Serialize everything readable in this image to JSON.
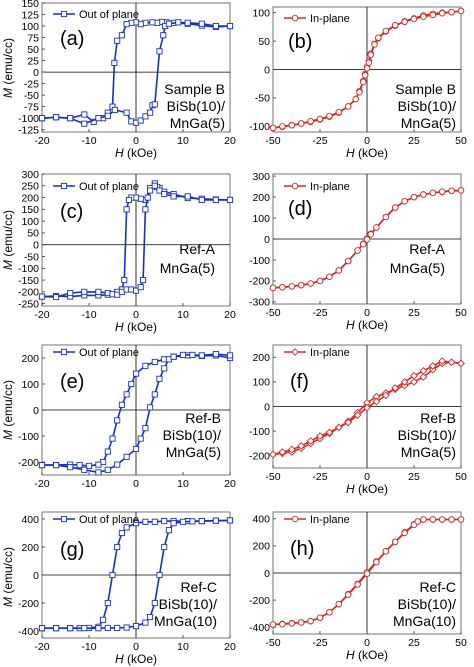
{
  "figure": {
    "ylabel_parts": [
      "M",
      " (emu/cc)"
    ],
    "xlabel_parts": [
      "H",
      " (kOe)"
    ]
  },
  "colors": {
    "out_of_plane": "#1a2fc4",
    "in_plane": "#d42a2a",
    "axis": "#000000",
    "frame": "#666666"
  },
  "chart_data": [
    {
      "type": "line",
      "panel": "(a)",
      "legend": "Out of plane",
      "marker": "square",
      "annotation": [
        "Sample B",
        "BiSb(10)/",
        "MnGa(5)"
      ],
      "xlim": [
        -20,
        20
      ],
      "ylim": [
        -130,
        150
      ],
      "xticks": [
        -20,
        -10,
        0,
        10,
        20
      ],
      "yticks": [
        -125,
        -100,
        -75,
        -50,
        -25,
        0,
        25,
        50,
        75,
        100,
        125,
        150
      ],
      "show_xlabel": true,
      "series": [
        {
          "name": "Out of plane",
          "segment": "descending",
          "x": [
            20,
            17,
            14,
            11,
            8,
            6.5,
            5.5,
            4.5,
            3.5,
            2,
            1,
            0,
            -1,
            -2,
            -3,
            -4,
            -4.6,
            -5,
            -6,
            -7,
            -9,
            -11,
            -14,
            -17,
            -20
          ],
          "y": [
            100,
            98,
            101,
            105,
            107,
            108,
            109,
            107,
            108,
            107,
            104,
            108,
            107,
            104,
            80,
            68,
            20,
            -75,
            -88,
            -100,
            -108,
            -92,
            -100,
            -98,
            -100
          ]
        },
        {
          "name": "Out of plane",
          "segment": "ascending",
          "x": [
            -20,
            -17,
            -14,
            -11,
            -8,
            -6,
            -4.5,
            -2,
            -1,
            0,
            1,
            2,
            3,
            3.5,
            4,
            5,
            5.8,
            6.2,
            7,
            9,
            11,
            14,
            17,
            20
          ],
          "y": [
            -100,
            -98,
            -100,
            -112,
            -100,
            -95,
            -82,
            -88,
            -107,
            -110,
            -105,
            -96,
            -88,
            -72,
            -70,
            45,
            80,
            100,
            105,
            108,
            107,
            105,
            100,
            100
          ]
        }
      ]
    },
    {
      "type": "line",
      "panel": "(b)",
      "legend": "In-plane",
      "marker": "circle",
      "annotation": [
        "Sample B",
        "BiSb(10)/",
        "MnGa(5)"
      ],
      "xlim": [
        -50,
        50
      ],
      "ylim": [
        -110,
        110
      ],
      "xticks": [
        -50,
        -25,
        0,
        25,
        50
      ],
      "yticks": [
        -100,
        -50,
        0,
        50,
        100
      ],
      "show_xlabel": true,
      "series": [
        {
          "name": "In-plane",
          "segment": "descending",
          "x": [
            50,
            45,
            40,
            35,
            30,
            25,
            20,
            15,
            10,
            6,
            4,
            2,
            1,
            0,
            -1,
            -2,
            -4,
            -6,
            -10,
            -15,
            -20,
            -25,
            -30,
            -35,
            -40,
            -45,
            -50
          ],
          "y": [
            103,
            101,
            100,
            98,
            95,
            90,
            85,
            77,
            67,
            55,
            45,
            28,
            15,
            5,
            -8,
            -20,
            -38,
            -52,
            -65,
            -76,
            -83,
            -88,
            -92,
            -95,
            -98,
            -101,
            -103
          ]
        },
        {
          "name": "In-plane",
          "segment": "ascending",
          "x": [
            -50,
            -45,
            -40,
            -35,
            -30,
            -25,
            -20,
            -15,
            -10,
            -6,
            -4,
            -2,
            -1,
            0,
            1,
            2,
            4,
            6,
            10,
            15,
            20,
            25,
            30,
            35,
            40,
            45,
            50
          ],
          "y": [
            -103,
            -100,
            -98,
            -95,
            -91,
            -87,
            -82,
            -75,
            -65,
            -52,
            -40,
            -22,
            -10,
            2,
            12,
            26,
            44,
            56,
            68,
            78,
            84,
            89,
            93,
            96,
            99,
            101,
            103
          ]
        }
      ]
    },
    {
      "type": "line",
      "panel": "(c)",
      "legend": "Out of plane",
      "marker": "square",
      "annotation": [
        "Ref-A",
        "MnGa(5)"
      ],
      "xlim": [
        -20,
        20
      ],
      "ylim": [
        -260,
        300
      ],
      "xticks": [
        -20,
        -10,
        0,
        10,
        20
      ],
      "yticks": [
        -250,
        -200,
        -150,
        -100,
        -50,
        0,
        50,
        100,
        150,
        200,
        250,
        300
      ],
      "show_xlabel": true,
      "series": [
        {
          "name": "Out of plane",
          "segment": "descending",
          "x": [
            20,
            17,
            14,
            11,
            8,
            6,
            5,
            4.5,
            4,
            3,
            2,
            1,
            0,
            -1,
            -1.5,
            -2,
            -2.5,
            -3,
            -4,
            -6,
            -8,
            -11,
            -14,
            -17,
            -20
          ],
          "y": [
            190,
            192,
            195,
            198,
            215,
            225,
            240,
            245,
            260,
            240,
            190,
            195,
            200,
            200,
            190,
            150,
            -150,
            -190,
            -200,
            -212,
            -215,
            -215,
            -220,
            -218,
            -220
          ]
        },
        {
          "name": "Out of plane",
          "segment": "ascending",
          "x": [
            -20,
            -17,
            -14,
            -11,
            -8,
            -6,
            -5,
            -4,
            -3,
            -2,
            -1,
            0,
            1,
            1.5,
            2,
            2.5,
            3,
            4,
            5,
            6,
            8,
            11,
            14,
            17,
            20
          ],
          "y": [
            -220,
            -222,
            -205,
            -200,
            -200,
            -205,
            -210,
            -212,
            -200,
            -190,
            -190,
            -195,
            -180,
            -150,
            150,
            200,
            230,
            250,
            230,
            215,
            205,
            205,
            190,
            190,
            190
          ]
        }
      ]
    },
    {
      "type": "line",
      "panel": "(d)",
      "legend": "In-plane",
      "marker": "circle",
      "annotation": [
        "Ref-A",
        "MnGa(5)"
      ],
      "xlim": [
        -50,
        50
      ],
      "ylim": [
        -310,
        310
      ],
      "xticks": [
        -50,
        -25,
        0,
        25,
        50
      ],
      "yticks": [
        -300,
        -200,
        -100,
        0,
        100,
        200,
        300
      ],
      "show_xlabel": true,
      "series": [
        {
          "name": "In-plane",
          "segment": "descending",
          "x": [
            50,
            45,
            40,
            35,
            30,
            25,
            20,
            15,
            10,
            5,
            2,
            0,
            -2,
            -5,
            -10,
            -15,
            -20,
            -25,
            -30,
            -35,
            -40,
            -45,
            -50
          ],
          "y": [
            232,
            230,
            225,
            220,
            212,
            200,
            180,
            150,
            105,
            55,
            25,
            2,
            -22,
            -55,
            -105,
            -150,
            -180,
            -200,
            -212,
            -220,
            -226,
            -230,
            -233
          ]
        },
        {
          "name": "In-plane",
          "segment": "ascending",
          "x": [
            -50,
            -45,
            -40,
            -35,
            -30,
            -25,
            -20,
            -15,
            -10,
            -5,
            -2,
            0,
            2,
            5,
            10,
            15,
            20,
            25,
            30,
            35,
            40,
            45,
            50
          ],
          "y": [
            -233,
            -230,
            -226,
            -220,
            -212,
            -200,
            -180,
            -150,
            -105,
            -55,
            -25,
            -2,
            22,
            55,
            105,
            150,
            180,
            200,
            212,
            220,
            226,
            230,
            232
          ]
        }
      ]
    },
    {
      "type": "line",
      "panel": "(e)",
      "legend": "Out of plane",
      "marker": "square",
      "annotation": [
        "Ref-B",
        "BiSb(10)/",
        "MnGa(5)"
      ],
      "xlim": [
        -20,
        20
      ],
      "ylim": [
        -250,
        250
      ],
      "xticks": [
        -20,
        -10,
        0,
        10,
        20
      ],
      "yticks": [
        -200,
        -100,
        0,
        100,
        200
      ],
      "show_xlabel": false,
      "series": [
        {
          "name": "Out of plane",
          "segment": "descending",
          "x": [
            20,
            17,
            14,
            11,
            8,
            6,
            4,
            2,
            0,
            -1,
            -2,
            -3,
            -4,
            -5,
            -6,
            -7,
            -8,
            -10,
            -12,
            -14,
            -17,
            -20
          ],
          "y": [
            200,
            210,
            208,
            210,
            205,
            195,
            185,
            170,
            140,
            100,
            60,
            20,
            -40,
            -110,
            -160,
            -200,
            -210,
            -215,
            -212,
            -210,
            -212,
            -212
          ]
        },
        {
          "name": "Out of plane",
          "segment": "ascending",
          "x": [
            -20,
            -17,
            -14,
            -11,
            -8,
            -6,
            -4,
            -2,
            0,
            1,
            2,
            3,
            4,
            5,
            6,
            7,
            8,
            10,
            12,
            14,
            17,
            20
          ],
          "y": [
            -212,
            -212,
            -220,
            -230,
            -240,
            -230,
            -210,
            -180,
            -150,
            -110,
            -70,
            10,
            60,
            120,
            160,
            195,
            205,
            212,
            212,
            210,
            215,
            210
          ]
        }
      ]
    },
    {
      "type": "line",
      "panel": "(f)",
      "legend": "In-plane",
      "marker": "diamond",
      "annotation": [
        "Ref-B",
        "BiSb(10)/",
        "MnGa(5)"
      ],
      "xlim": [
        -50,
        50
      ],
      "ylim": [
        -250,
        250
      ],
      "xticks": [
        -50,
        -25,
        0,
        25,
        50
      ],
      "yticks": [
        -200,
        -100,
        0,
        100,
        200
      ],
      "show_xlabel": true,
      "series": [
        {
          "name": "In-plane",
          "segment": "descending",
          "x": [
            50,
            45,
            40,
            35,
            30,
            25,
            20,
            15,
            10,
            5,
            0,
            -5,
            -10,
            -15,
            -20,
            -25,
            -30,
            -35,
            -40,
            -45,
            -50
          ],
          "y": [
            175,
            180,
            175,
            150,
            120,
            100,
            85,
            70,
            55,
            40,
            15,
            -25,
            -60,
            -85,
            -110,
            -130,
            -150,
            -170,
            -185,
            -190,
            -195
          ]
        },
        {
          "name": "In-plane",
          "segment": "ascending",
          "x": [
            -50,
            -45,
            -40,
            -35,
            -30,
            -25,
            -20,
            -15,
            -10,
            -5,
            0,
            5,
            10,
            15,
            20,
            25,
            30,
            35,
            40,
            45,
            50
          ],
          "y": [
            -195,
            -185,
            -175,
            -160,
            -140,
            -120,
            -105,
            -85,
            -65,
            -35,
            -5,
            20,
            45,
            75,
            100,
            125,
            145,
            165,
            185,
            180,
            175
          ]
        }
      ]
    },
    {
      "type": "line",
      "panel": "(g)",
      "legend": "Out of plane",
      "marker": "square",
      "annotation": [
        "Ref-C",
        "BiSb(10)/",
        "MnGa(10)"
      ],
      "xlim": [
        -20,
        20
      ],
      "ylim": [
        -450,
        450
      ],
      "xticks": [
        -20,
        -10,
        0,
        10,
        20
      ],
      "yticks": [
        -400,
        -200,
        0,
        200,
        400
      ],
      "show_xlabel": true,
      "series": [
        {
          "name": "Out of plane",
          "segment": "descending",
          "x": [
            20,
            17,
            14,
            11,
            8,
            6,
            4,
            2,
            0,
            -2,
            -3,
            -4,
            -5,
            -6,
            -7,
            -8,
            -10,
            -12,
            -14,
            -17,
            -20
          ],
          "y": [
            390,
            388,
            385,
            385,
            385,
            385,
            380,
            380,
            370,
            340,
            300,
            200,
            0,
            -200,
            -320,
            -370,
            -378,
            -380,
            -380,
            -380,
            -380
          ]
        },
        {
          "name": "Out of plane",
          "segment": "ascending",
          "x": [
            -20,
            -17,
            -14,
            -11,
            -8,
            -6,
            -4,
            -2,
            0,
            2,
            3,
            4,
            5,
            6,
            7,
            8,
            10,
            12,
            14,
            17,
            20
          ],
          "y": [
            -380,
            -380,
            -380,
            -380,
            -380,
            -378,
            -378,
            -375,
            -365,
            -340,
            -300,
            -200,
            0,
            200,
            320,
            370,
            380,
            383,
            385,
            388,
            390
          ]
        }
      ]
    },
    {
      "type": "line",
      "panel": "(h)",
      "legend": "In-plane",
      "marker": "circle",
      "annotation": [
        "Ref-C",
        "BiSb(10)/",
        "MnGa(10)"
      ],
      "xlim": [
        -50,
        50
      ],
      "ylim": [
        -450,
        450
      ],
      "xticks": [
        -50,
        -25,
        0,
        25,
        50
      ],
      "yticks": [
        -400,
        -200,
        0,
        200,
        400
      ],
      "show_xlabel": true,
      "series": [
        {
          "name": "In-plane",
          "segment": "descending",
          "x": [
            50,
            45,
            40,
            35,
            30,
            27,
            25,
            20,
            15,
            10,
            5,
            0,
            -5,
            -10,
            -15,
            -20,
            -25,
            -30,
            -35,
            -40,
            -45,
            -50
          ],
          "y": [
            395,
            395,
            395,
            395,
            395,
            380,
            360,
            300,
            230,
            160,
            85,
            5,
            -80,
            -155,
            -230,
            -290,
            -330,
            -355,
            -365,
            -370,
            -375,
            -380
          ]
        },
        {
          "name": "In-plane",
          "segment": "ascending",
          "x": [
            -50,
            -45,
            -40,
            -35,
            -30,
            -25,
            -20,
            -15,
            -10,
            -5,
            0,
            5,
            10,
            15,
            20,
            25,
            27,
            30,
            35,
            40,
            45,
            50
          ],
          "y": [
            -380,
            -378,
            -372,
            -365,
            -355,
            -330,
            -290,
            -230,
            -160,
            -85,
            -5,
            80,
            160,
            230,
            295,
            355,
            380,
            395,
            395,
            395,
            395,
            395
          ]
        }
      ]
    }
  ]
}
